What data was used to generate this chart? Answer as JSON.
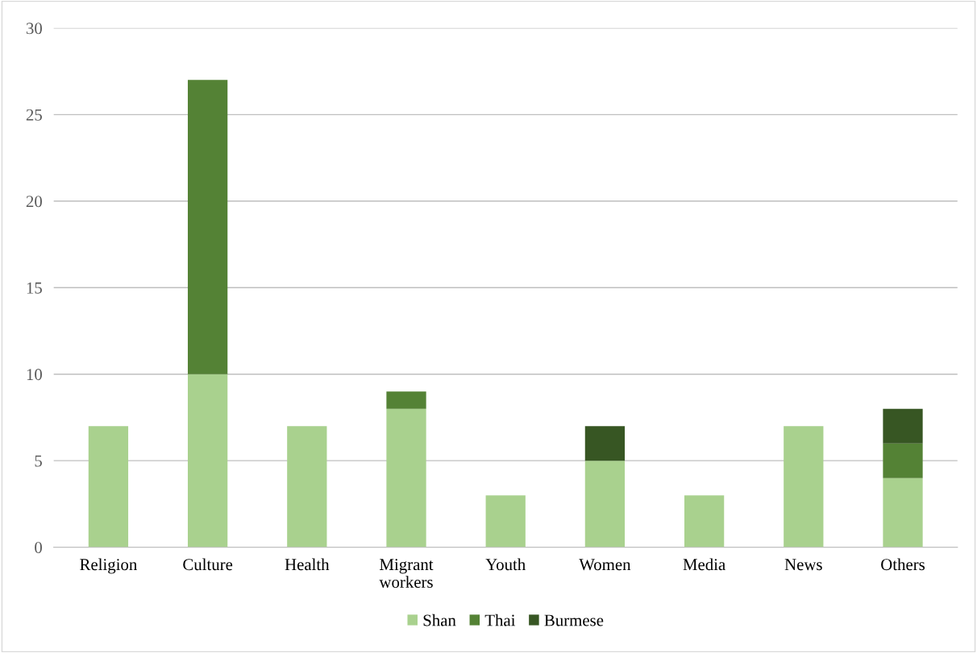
{
  "chart_data": {
    "type": "bar",
    "stacked": true,
    "categories": [
      "Religion",
      "Culture",
      "Health",
      "Migrant\nworkers",
      "Youth",
      "Women",
      "Media",
      "News",
      "Others"
    ],
    "series": [
      {
        "name": "Shan",
        "color": "#a9d18e",
        "values": [
          7,
          10,
          7,
          8,
          3,
          5,
          3,
          7,
          4
        ]
      },
      {
        "name": "Thai",
        "color": "#548235",
        "values": [
          0,
          17,
          0,
          1,
          0,
          0,
          0,
          0,
          2
        ]
      },
      {
        "name": "Burmese",
        "color": "#375623",
        "values": [
          0,
          0,
          0,
          0,
          0,
          2,
          0,
          0,
          2
        ]
      }
    ],
    "ylim": [
      0,
      30
    ],
    "yticks": [
      0,
      5,
      10,
      15,
      20,
      25,
      30
    ],
    "grid": "y",
    "legend": "bottom"
  }
}
